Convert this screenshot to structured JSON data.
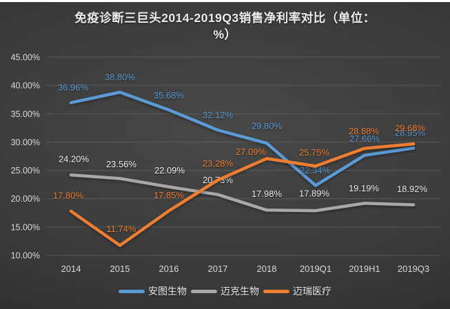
{
  "page": {
    "title_line1": "免疫诊断三巨头2014-2019Q3销售净利率对比（单位：",
    "title_line2": "%）"
  },
  "chart_data": {
    "type": "line",
    "title": "免疫诊断三巨头2014-2019Q3销售净利率对比（单位：%）",
    "categories": [
      "2014",
      "2015",
      "2016",
      "2017",
      "2018",
      "2019Q1",
      "2019H1",
      "2019Q3"
    ],
    "y_ticks": [
      "45.00%",
      "40.00%",
      "35.00%",
      "30.00%",
      "25.00%",
      "20.00%",
      "15.00%",
      "10.00%"
    ],
    "ylim": [
      10,
      45
    ],
    "grid": true,
    "legend_position": "bottom",
    "series": [
      {
        "name": "安图生物",
        "color": "#5b9bd5",
        "label_color": "#5b9bd5",
        "values": [
          36.96,
          38.8,
          35.68,
          32.12,
          29.8,
          22.34,
          27.66,
          28.95
        ],
        "labels": [
          "36.96%",
          "38.80%",
          "35.68%",
          "32.12%",
          "29.80%",
          "22.34%",
          "27.66%",
          "28.95%"
        ]
      },
      {
        "name": "迈克生物",
        "color": "#a8a8a8",
        "label_color": "#ebebeb",
        "values": [
          24.2,
          23.56,
          22.09,
          20.73,
          17.98,
          17.89,
          19.19,
          18.92
        ],
        "labels": [
          "24.20%",
          "23.56%",
          "22.09%",
          "20.73%",
          "17.98%",
          "17.89%",
          "19.19%",
          "18.92%"
        ]
      },
      {
        "name": "迈瑞医疗",
        "color": "#ed7d31",
        "label_color": "#ed7d31",
        "values": [
          17.8,
          11.74,
          17.85,
          23.28,
          27.09,
          25.75,
          28.88,
          29.68
        ],
        "labels": [
          "17.80%",
          "11.74%",
          "17.85%",
          "23.28%",
          "27.09%",
          "25.75%",
          "28.88%",
          "29.68%"
        ]
      }
    ]
  }
}
